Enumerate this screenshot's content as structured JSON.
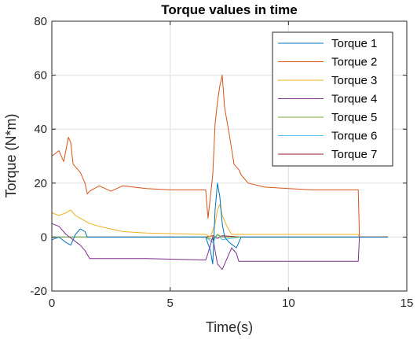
{
  "chart_data": {
    "type": "line",
    "title": "Torque values in time",
    "xlabel": "Time(s)",
    "ylabel": "Torque (N*m)",
    "xlim": [
      0,
      15
    ],
    "ylim": [
      -20,
      80
    ],
    "xticks": [
      "0",
      "5",
      "10",
      "15"
    ],
    "yticks": [
      "-20",
      "0",
      "20",
      "40",
      "60",
      "80"
    ],
    "grid": true,
    "legend_position": "top-right",
    "series": [
      {
        "name": "Torque 1",
        "color": "#0072BD",
        "points": [
          [
            0,
            -1
          ],
          [
            0.3,
            0
          ],
          [
            0.6,
            -2
          ],
          [
            0.8,
            -3
          ],
          [
            1.0,
            1
          ],
          [
            1.2,
            3
          ],
          [
            1.4,
            2
          ],
          [
            1.5,
            0
          ],
          [
            3,
            0
          ],
          [
            6.5,
            0
          ],
          [
            6.7,
            -5
          ],
          [
            6.8,
            -10
          ],
          [
            6.9,
            10
          ],
          [
            7.0,
            20
          ],
          [
            7.1,
            15
          ],
          [
            7.2,
            5
          ],
          [
            7.3,
            0
          ],
          [
            7.5,
            -2
          ],
          [
            7.8,
            -4
          ],
          [
            8.0,
            0
          ],
          [
            10,
            0
          ],
          [
            12.9,
            0
          ],
          [
            13.0,
            0
          ],
          [
            14.2,
            0
          ]
        ]
      },
      {
        "name": "Torque 2",
        "color": "#D95319",
        "points": [
          [
            0,
            30
          ],
          [
            0.3,
            32
          ],
          [
            0.5,
            28
          ],
          [
            0.7,
            37
          ],
          [
            0.8,
            35
          ],
          [
            0.9,
            27
          ],
          [
            1.0,
            26
          ],
          [
            1.2,
            24
          ],
          [
            1.4,
            20
          ],
          [
            1.5,
            16
          ],
          [
            1.6,
            17
          ],
          [
            2.0,
            19
          ],
          [
            2.5,
            17
          ],
          [
            3.0,
            19
          ],
          [
            4.0,
            18
          ],
          [
            5.0,
            17.5
          ],
          [
            6.5,
            17.5
          ],
          [
            6.6,
            7
          ],
          [
            6.8,
            23
          ],
          [
            6.9,
            42
          ],
          [
            7.0,
            50
          ],
          [
            7.1,
            56
          ],
          [
            7.2,
            60
          ],
          [
            7.3,
            48
          ],
          [
            7.5,
            38
          ],
          [
            7.7,
            27
          ],
          [
            7.9,
            25
          ],
          [
            8.0,
            23
          ],
          [
            8.3,
            20
          ],
          [
            9.0,
            18.5
          ],
          [
            10,
            18
          ],
          [
            11,
            17.5
          ],
          [
            12,
            17.5
          ],
          [
            12.95,
            17.5
          ],
          [
            13.0,
            0
          ],
          [
            14.2,
            0
          ]
        ]
      },
      {
        "name": "Torque 3",
        "color": "#EDB120",
        "points": [
          [
            0,
            9
          ],
          [
            0.3,
            8
          ],
          [
            0.6,
            9
          ],
          [
            0.8,
            10
          ],
          [
            1.0,
            8
          ],
          [
            1.2,
            7
          ],
          [
            1.4,
            6
          ],
          [
            1.6,
            5
          ],
          [
            2.0,
            4
          ],
          [
            3.0,
            2
          ],
          [
            4.0,
            1.5
          ],
          [
            6.5,
            1
          ],
          [
            6.7,
            0
          ],
          [
            6.9,
            5
          ],
          [
            7.0,
            10
          ],
          [
            7.1,
            12
          ],
          [
            7.2,
            8
          ],
          [
            7.4,
            4
          ],
          [
            7.6,
            1
          ],
          [
            7.8,
            1
          ],
          [
            8.0,
            1
          ],
          [
            10,
            1
          ],
          [
            12.95,
            1
          ],
          [
            13.0,
            0
          ],
          [
            14.2,
            0
          ]
        ]
      },
      {
        "name": "Torque 4",
        "color": "#7E2F8E",
        "points": [
          [
            0,
            5
          ],
          [
            0.3,
            4
          ],
          [
            0.6,
            1
          ],
          [
            0.9,
            -1
          ],
          [
            1.2,
            -3
          ],
          [
            1.4,
            -5
          ],
          [
            1.6,
            -8
          ],
          [
            2.0,
            -8
          ],
          [
            3.0,
            -8
          ],
          [
            4.0,
            -8
          ],
          [
            6.5,
            -8.5
          ],
          [
            6.6,
            -6
          ],
          [
            6.8,
            0
          ],
          [
            6.9,
            -5
          ],
          [
            7.0,
            -10
          ],
          [
            7.2,
            -12
          ],
          [
            7.4,
            -8
          ],
          [
            7.6,
            -4
          ],
          [
            7.8,
            -6
          ],
          [
            7.9,
            -9
          ],
          [
            8.0,
            -9
          ],
          [
            10,
            -9
          ],
          [
            12.95,
            -9
          ],
          [
            13.0,
            0
          ],
          [
            14.2,
            0
          ]
        ]
      },
      {
        "name": "Torque 5",
        "color": "#77AC30",
        "points": [
          [
            0,
            0
          ],
          [
            1.5,
            0
          ],
          [
            6.5,
            0
          ],
          [
            6.8,
            -1
          ],
          [
            7.0,
            1
          ],
          [
            7.2,
            0
          ],
          [
            8.0,
            0
          ],
          [
            14.2,
            0
          ]
        ]
      },
      {
        "name": "Torque 6",
        "color": "#4DBEEE",
        "points": [
          [
            0,
            0
          ],
          [
            1.5,
            0
          ],
          [
            6.5,
            0
          ],
          [
            6.8,
            -2
          ],
          [
            7.0,
            1
          ],
          [
            7.2,
            -1
          ],
          [
            8.0,
            0
          ],
          [
            14.2,
            0
          ]
        ]
      },
      {
        "name": "Torque 7",
        "color": "#A2142F",
        "points": [
          [
            0,
            0
          ],
          [
            1.5,
            0
          ],
          [
            6.5,
            0
          ],
          [
            6.8,
            0.5
          ],
          [
            7.0,
            -0.5
          ],
          [
            7.2,
            0.5
          ],
          [
            8.0,
            0
          ],
          [
            14.2,
            0
          ]
        ]
      }
    ]
  }
}
